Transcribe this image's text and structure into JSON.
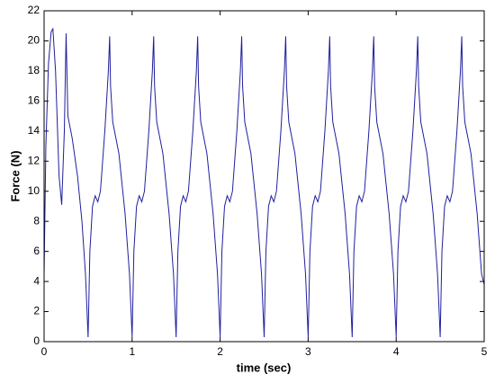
{
  "chart_data": {
    "type": "line",
    "xlabel": "time (sec)",
    "ylabel": "Force (N)",
    "xlim": [
      0,
      5
    ],
    "ylim": [
      0,
      22
    ],
    "xticks": [
      0,
      1,
      2,
      3,
      4,
      5
    ],
    "yticks": [
      0,
      2,
      4,
      6,
      8,
      10,
      12,
      14,
      16,
      18,
      20,
      22
    ],
    "grid": false,
    "series": [
      {
        "color": "#1f1f9f",
        "x": [
          0,
          0.02,
          0.05,
          0.08,
          0.1,
          0.13,
          0.17,
          0.2,
          0.23,
          0.25,
          0.27,
          0.32,
          0.38,
          0.43,
          0.47,
          0.5,
          0.52,
          0.55,
          0.58,
          0.61,
          0.64,
          0.69,
          0.73,
          0.745,
          0.755,
          0.78,
          0.85,
          0.92,
          0.97,
          1,
          1.02,
          1.05,
          1.08,
          1.11,
          1.14,
          1.19,
          1.23,
          1.245,
          1.255,
          1.28,
          1.35,
          1.42,
          1.47,
          1.5,
          1.52,
          1.55,
          1.58,
          1.61,
          1.64,
          1.69,
          1.73,
          1.745,
          1.755,
          1.78,
          1.85,
          1.92,
          1.97,
          2,
          2.02,
          2.05,
          2.08,
          2.11,
          2.14,
          2.19,
          2.23,
          2.245,
          2.255,
          2.28,
          2.35,
          2.42,
          2.47,
          2.5,
          2.52,
          2.55,
          2.58,
          2.61,
          2.64,
          2.69,
          2.73,
          2.745,
          2.755,
          2.78,
          2.85,
          2.92,
          2.97,
          3,
          3.02,
          3.05,
          3.08,
          3.11,
          3.14,
          3.19,
          3.23,
          3.245,
          3.255,
          3.28,
          3.35,
          3.42,
          3.47,
          3.5,
          3.52,
          3.55,
          3.58,
          3.61,
          3.64,
          3.69,
          3.73,
          3.745,
          3.755,
          3.78,
          3.85,
          3.92,
          3.97,
          4,
          4.02,
          4.05,
          4.08,
          4.11,
          4.14,
          4.19,
          4.23,
          4.245,
          4.255,
          4.28,
          4.35,
          4.42,
          4.47,
          4.5,
          4.52,
          4.55,
          4.58,
          4.61,
          4.64,
          4.69,
          4.73,
          4.745,
          4.755,
          4.78,
          4.85,
          4.92,
          4.97,
          5
        ],
        "values": [
          4.5,
          13,
          18.5,
          20.6,
          20.8,
          18,
          11,
          9.1,
          14,
          20.5,
          15,
          13.5,
          11,
          8,
          4.5,
          0.3,
          6,
          9,
          9.7,
          9.3,
          10,
          14,
          18,
          20.3,
          17,
          14.6,
          12.5,
          8.5,
          4.5,
          0.3,
          6,
          9,
          9.7,
          9.3,
          10,
          14,
          18,
          20.3,
          17,
          14.6,
          12.5,
          8.5,
          4.5,
          0.3,
          6,
          9,
          9.7,
          9.3,
          10,
          14,
          18,
          20.3,
          17,
          14.6,
          12.5,
          8.5,
          4.5,
          0.3,
          6,
          9,
          9.7,
          9.3,
          10,
          14,
          18,
          20.3,
          17,
          14.6,
          12.5,
          8.5,
          4.5,
          0.3,
          6,
          9,
          9.7,
          9.3,
          10,
          14,
          18,
          20.3,
          17,
          14.6,
          12.5,
          8.5,
          4.5,
          0.3,
          6,
          9,
          9.7,
          9.3,
          10,
          14,
          18,
          20.3,
          17,
          14.6,
          12.5,
          8.5,
          4.5,
          0.3,
          6,
          9,
          9.7,
          9.3,
          10,
          14,
          18,
          20.3,
          17,
          14.6,
          12.5,
          8.5,
          4.5,
          0.3,
          6,
          9,
          9.7,
          9.3,
          10,
          14,
          18,
          20.3,
          17,
          14.6,
          12.5,
          8.5,
          4.5,
          0.3,
          6,
          9,
          9.7,
          9.3,
          10,
          14,
          18,
          20.3,
          17,
          14.6,
          12.5,
          8.5,
          4.5,
          3.8
        ]
      }
    ]
  }
}
